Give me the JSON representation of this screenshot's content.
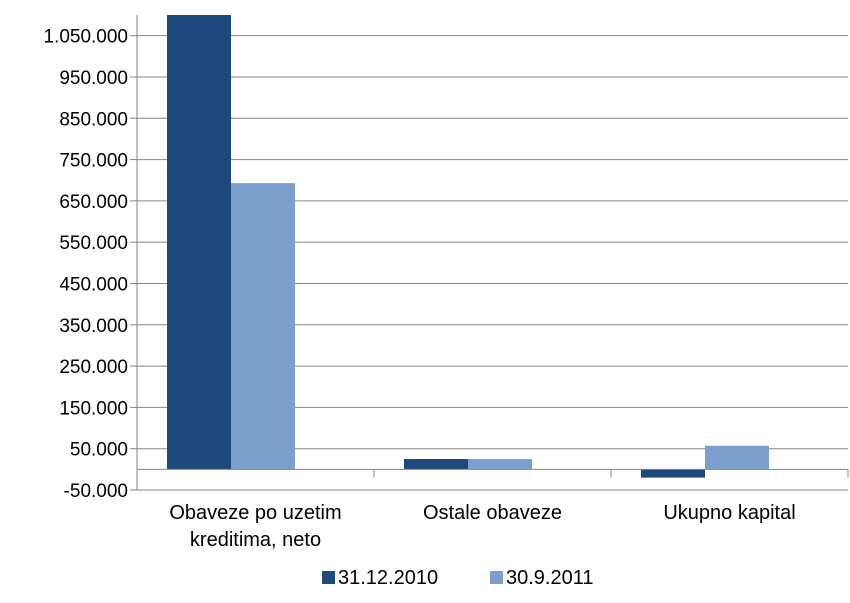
{
  "chart_data": {
    "type": "bar",
    "categories": [
      [
        "Obaveze po uzetim",
        "kreditima, neto"
      ],
      [
        "Ostale obaveze"
      ],
      [
        "Ukupno kapital"
      ]
    ],
    "series": [
      {
        "name": "31.12.2010",
        "color": "#1F497D",
        "values": [
          1100000,
          25000,
          -20000
        ]
      },
      {
        "name": "30.9.2011",
        "color": "#7BA0CD",
        "values": [
          693000,
          25000,
          57000
        ]
      }
    ],
    "ylim": [
      -50000,
      1100000
    ],
    "yticks": [
      -50000,
      50000,
      150000,
      250000,
      350000,
      450000,
      550000,
      650000,
      750000,
      850000,
      950000,
      1050000
    ],
    "ytick_labels": [
      "-50.000",
      "50.000",
      "150.000",
      "250.000",
      "350.000",
      "450.000",
      "550.000",
      "650.000",
      "750.000",
      "850.000",
      "950.000",
      "1.050.000"
    ],
    "grid": true,
    "legend_position": "bottom"
  }
}
